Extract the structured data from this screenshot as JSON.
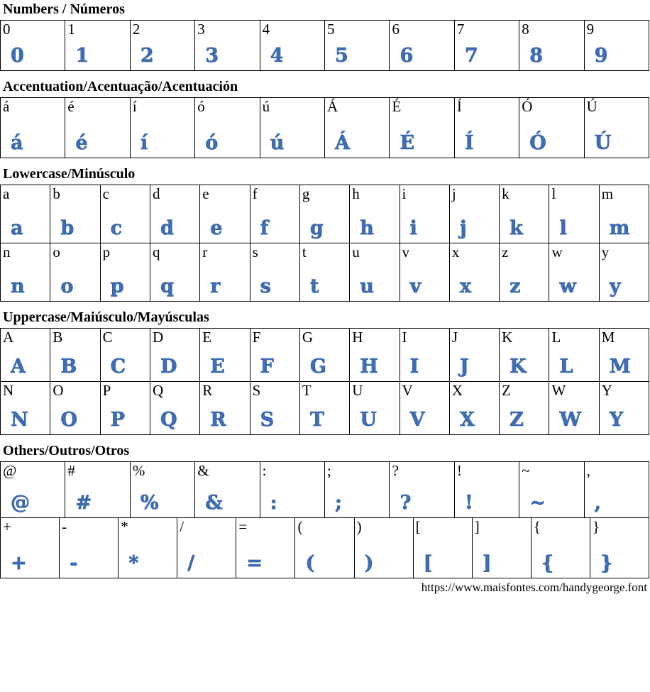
{
  "font_page": {
    "sections": [
      {
        "id": "numbers",
        "title": "Numbers / Números",
        "rows": [
          [
            "0",
            "1",
            "2",
            "3",
            "4",
            "5",
            "6",
            "7",
            "8",
            "9"
          ]
        ]
      },
      {
        "id": "accentuation",
        "title": "Accentuation/Acentuação/Acentuación",
        "rows": [
          [
            "á",
            "é",
            "í",
            "ó",
            "ú",
            "Á",
            "É",
            "Í",
            "Ó",
            "Ú"
          ]
        ]
      },
      {
        "id": "lowercase",
        "title": "Lowercase/Minúsculo",
        "rows": [
          [
            "a",
            "b",
            "c",
            "d",
            "e",
            "f",
            "g",
            "h",
            "i",
            "j",
            "k",
            "l",
            "m"
          ],
          [
            "n",
            "o",
            "p",
            "q",
            "r",
            "s",
            "t",
            "u",
            "v",
            "x",
            "z",
            "w",
            "y"
          ]
        ]
      },
      {
        "id": "uppercase",
        "title": "Uppercase/Maiúsculo/Mayúsculas",
        "rows": [
          [
            "A",
            "B",
            "C",
            "D",
            "E",
            "F",
            "G",
            "H",
            "I",
            "J",
            "K",
            "L",
            "M"
          ],
          [
            "N",
            "O",
            "P",
            "Q",
            "R",
            "S",
            "T",
            "U",
            "V",
            "X",
            "Z",
            "W",
            "Y"
          ]
        ]
      },
      {
        "id": "others",
        "title": "Others/Outros/Otros",
        "rows": [
          [
            "@",
            "#",
            "%",
            "&",
            ":",
            ";",
            "?",
            "!",
            "~",
            ","
          ],
          [
            "+",
            "-",
            "*",
            "/",
            "=",
            "(",
            ")",
            "[",
            "]",
            "{",
            "}"
          ]
        ]
      }
    ],
    "footer": {
      "url": "https://www.maisfontes.com/handygeorge.font"
    },
    "colors": {
      "glyph_blue": "#3f6eb2",
      "border": "#000000",
      "ink": "#000000"
    }
  }
}
